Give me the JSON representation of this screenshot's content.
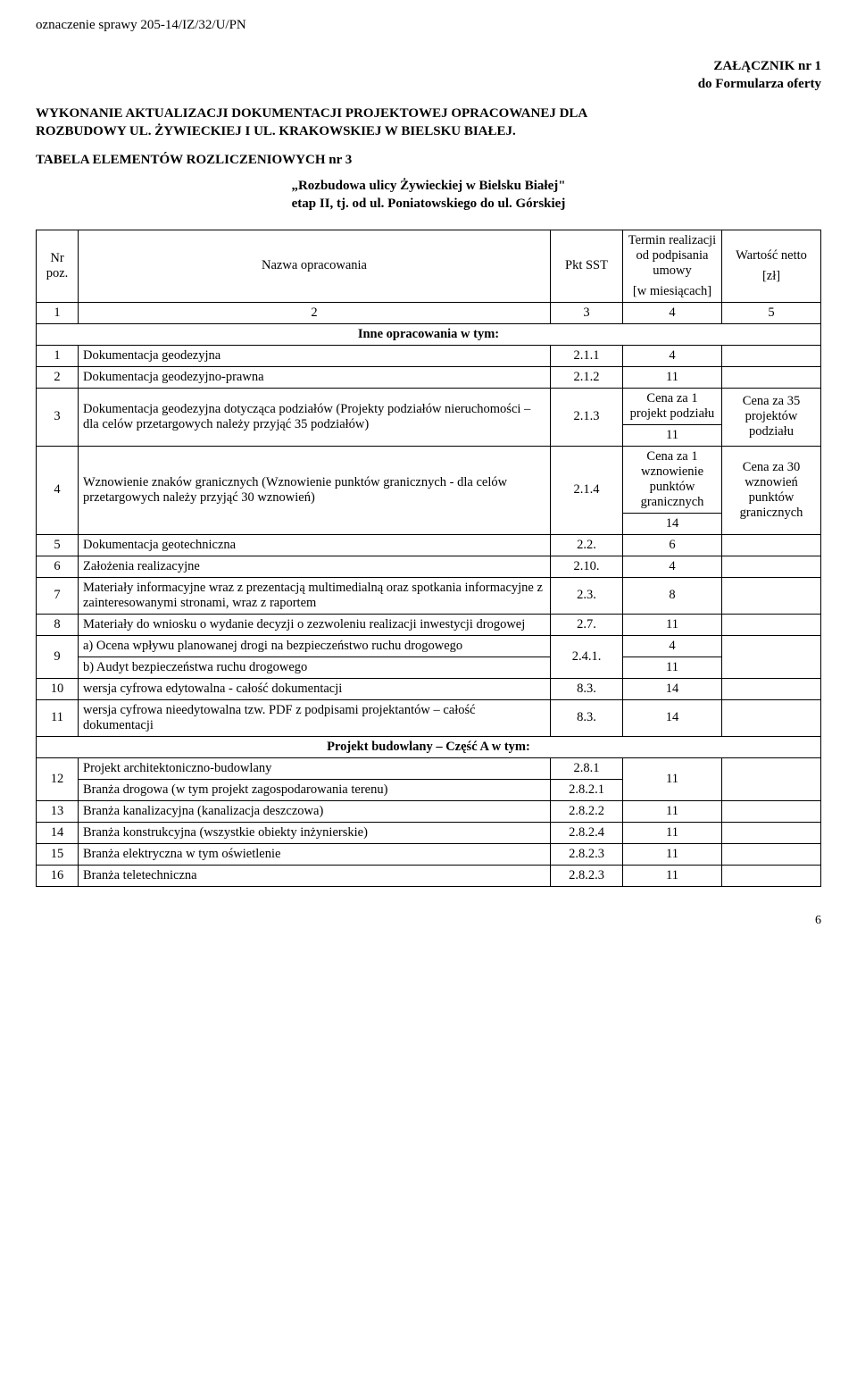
{
  "case_number": "oznaczenie sprawy 205-14/IZ/32/U/PN",
  "attachment": {
    "line1": "ZAŁĄCZNIK nr 1",
    "line2": "do Formularza oferty"
  },
  "title": {
    "line1": "WYKONANIE AKTUALIZACJI DOKUMENTACJI PROJEKTOWEJ OPRACOWANEJ DLA",
    "line2": "ROZBUDOWY UL. ŻYWIECKIEJ I UL. KRAKOWSKIEJ W BIELSKU BIAŁEJ."
  },
  "table_title": "TABELA  ELEMENTÓW  ROZLICZENIOWYCH nr   3",
  "subtitle": {
    "line1": "„Rozbudowa ulicy Żywieckiej  w  Bielsku  Białej\"",
    "line2": "etap II, tj. od ul.  Poniatowskiego do ul.  Górskiej"
  },
  "headers": {
    "nr": "Nr poz.",
    "name": "Nazwa opracowania",
    "pkt": "Pkt SST",
    "term": "Termin realizacji od podpisania umowy",
    "term_unit": "[w miesiącach]",
    "val": "Wartość netto",
    "val_unit": "[zł]"
  },
  "num_row": {
    "c1": "1",
    "c2": "2",
    "c3": "3",
    "c4": "4",
    "c5": "5"
  },
  "section1": "Inne opracowania w tym:",
  "rows": [
    {
      "nr": "1",
      "name": "Dokumentacja geodezyjna",
      "pkt": "2.1.1",
      "term": "4",
      "val": ""
    },
    {
      "nr": "2",
      "name": "Dokumentacja geodezyjno-prawna",
      "pkt": "2.1.2",
      "term": "11",
      "val": ""
    }
  ],
  "row3": {
    "nr": "3",
    "name": "Dokumentacja geodezyjna dotycząca podziałów (Projekty podziałów nieruchomości – dla celów przetargowych należy przyjąć 35 podziałów)",
    "pkt": "2.1.3",
    "term_a": "Cena za 1 projekt podziału",
    "term_b": "11",
    "val": "Cena za 35 projektów podziału"
  },
  "row4": {
    "nr": "4",
    "name": "Wznowienie znaków granicznych (Wznowienie punktów granicznych - dla celów przetargowych należy przyjąć 30 wznowień)",
    "pkt": "2.1.4",
    "term_a": "Cena za 1 wznowienie punktów granicznych",
    "term_b": "14",
    "val": "Cena za 30 wznowień punktów granicznych"
  },
  "rows_b": [
    {
      "nr": "5",
      "name": "Dokumentacja geotechniczna",
      "pkt": "2.2.",
      "term": "6",
      "val": ""
    },
    {
      "nr": "6",
      "name": "Założenia realizacyjne",
      "pkt": "2.10.",
      "term": "4",
      "val": ""
    },
    {
      "nr": "7",
      "name": "Materiały informacyjne wraz z  prezentacją multimedialną oraz spotkania informacyjne z zainteresowanymi stronami, wraz z raportem",
      "pkt": "2.3.",
      "term": "8",
      "val": ""
    },
    {
      "nr": "8",
      "name": "Materiały do wniosku o wydanie decyzji o zezwoleniu realizacji inwestycji drogowej",
      "pkt": "2.7.",
      "term": "11",
      "val": ""
    }
  ],
  "row9": {
    "nr": "9",
    "name_a": "a) Ocena wpływu planowanej drogi na bezpieczeństwo ruchu drogowego",
    "name_b": "b) Audyt bezpieczeństwa ruchu drogowego",
    "pkt": "2.4.1.",
    "term_a": "4",
    "term_b": "11"
  },
  "rows_c": [
    {
      "nr": "10",
      "name": "wersja cyfrowa edytowalna - całość dokumentacji",
      "pkt": "8.3.",
      "term": "14",
      "val": ""
    },
    {
      "nr": "11",
      "name": "wersja cyfrowa nieedytowalna tzw. PDF z podpisami projektantów – całość dokumentacji",
      "pkt": "8.3.",
      "term": "14",
      "val": ""
    }
  ],
  "section2": "Projekt budowlany – Część A w tym:",
  "row12": {
    "nr": "12",
    "name_a": "Projekt architektoniczno-budowlany",
    "name_b": "Branża drogowa (w tym projekt zagospodarowania terenu)",
    "pkt_a": "2.8.1",
    "pkt_b": "2.8.2.1",
    "term": "11"
  },
  "rows_d": [
    {
      "nr": "13",
      "name": "Branża kanalizacyjna (kanalizacja deszczowa)",
      "pkt": "2.8.2.2",
      "term": "11",
      "val": ""
    },
    {
      "nr": "14",
      "name": "Branża konstrukcyjna (wszystkie obiekty inżynierskie)",
      "pkt": "2.8.2.4",
      "term": "11",
      "val": ""
    },
    {
      "nr": "15",
      "name": "Branża elektryczna w tym oświetlenie",
      "pkt": "2.8.2.3",
      "term": "11",
      "val": ""
    },
    {
      "nr": "16",
      "name": "Branża teletechniczna",
      "pkt": "2.8.2.3",
      "term": "11",
      "val": ""
    }
  ],
  "page_number": "6"
}
